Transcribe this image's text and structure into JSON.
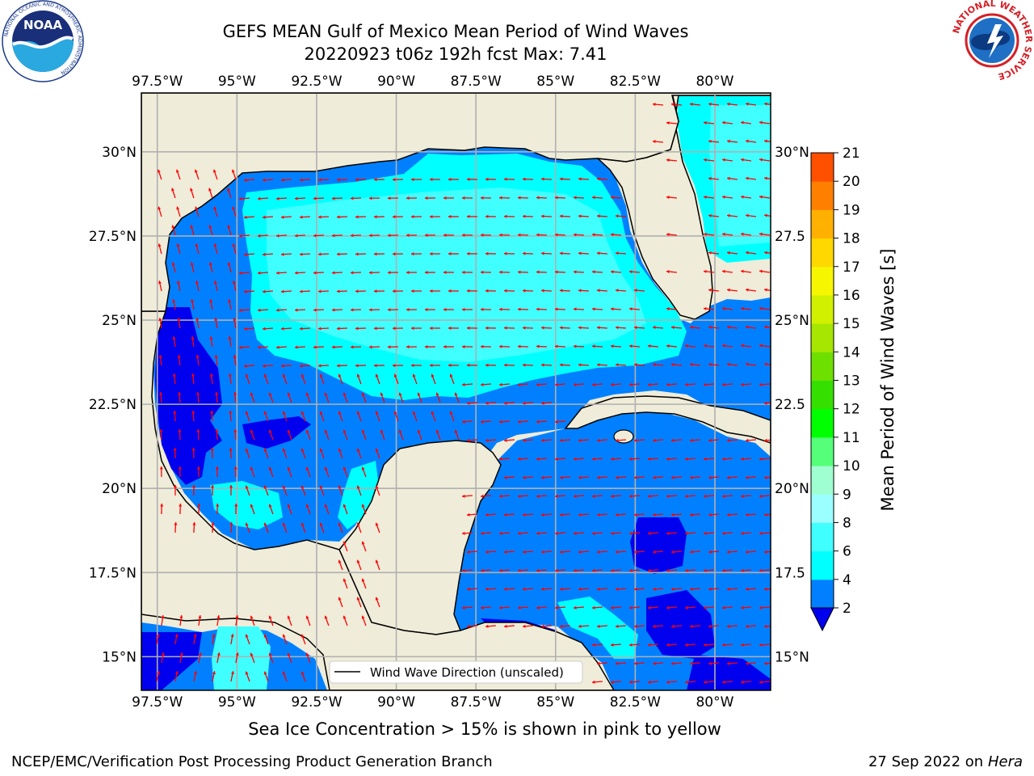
{
  "title_line1": "GEFS MEAN Gulf of Mexico Mean Period of Wind Waves",
  "title_line2": "20220923 t06z 192h fcst   Max: 7.41",
  "note": "Sea Ice Concentration > 15% is shown in pink to yellow",
  "footer_left": "NCEP/EMC/Verification Post Processing Product Generation Branch",
  "footer_right_date": "27 Sep 2022 on",
  "footer_right_host": "Hera",
  "logos": {
    "left": "NOAA",
    "left_ring": "NATIONAL OCEANIC AND ATMOSPHERIC ADMINISTRATION",
    "left_ring2": "U.S. DEPARTMENT OF COMMERCE",
    "right_ring": "NATIONAL WEATHER SERVICE"
  },
  "legend_label": "Wind Wave Direction (unscaled)",
  "colors": {
    "land": "#efecd9",
    "ocean_dark": "#0000ee",
    "ocean_mid": "#0080ff",
    "ocean_light": "#00ffff",
    "ocean_pale": "#40ffff",
    "arrow": "#ff0000",
    "grid": "#b0b0b0"
  },
  "chart_data": {
    "type": "heatmap",
    "title": "GEFS MEAN Gulf of Mexico Mean Period of Wind Waves",
    "subtitle": "20220923 t06z 192h fcst   Max: 7.41",
    "projection": "lon/lat",
    "xlim": [
      -98,
      -78.25
    ],
    "ylim": [
      14,
      31.75
    ],
    "xticks": [
      "97.5°W",
      "95°W",
      "92.5°W",
      "90°W",
      "87.5°W",
      "85°W",
      "82.5°W",
      "80°W"
    ],
    "xtick_values": [
      -97.5,
      -95,
      -92.5,
      -90,
      -87.5,
      -85,
      -82.5,
      -80
    ],
    "yticks": [
      "15°N",
      "17.5°N",
      "20°N",
      "22.5°N",
      "25°N",
      "27.5°N",
      "30°N"
    ],
    "ytick_values": [
      15,
      17.5,
      20,
      22.5,
      25,
      27.5,
      30
    ],
    "right_yticks": [
      "15°N",
      "17.5",
      "20°N",
      "22.5",
      "25°N",
      "27.5",
      "30°N"
    ],
    "grid": true,
    "max_value": 7.41,
    "colorbar": {
      "label": "Mean Period of Wind Waves [s]",
      "levels": [
        2,
        4,
        6,
        8,
        9,
        10,
        11,
        12,
        13,
        14,
        15,
        16,
        17,
        18,
        19,
        20,
        21
      ],
      "colors": [
        "#0080ff",
        "#00ffff",
        "#40ffff",
        "#9bffff",
        "#a0ffd0",
        "#55ff7a",
        "#00ff00",
        "#35e000",
        "#6ee000",
        "#a6e600",
        "#d0f000",
        "#f6f600",
        "#ffd800",
        "#ffb000",
        "#ff8000",
        "#ff5000",
        "#ff1e00",
        "#ff0000"
      ],
      "under_color": "#0000ee",
      "extend": "min"
    }
  }
}
